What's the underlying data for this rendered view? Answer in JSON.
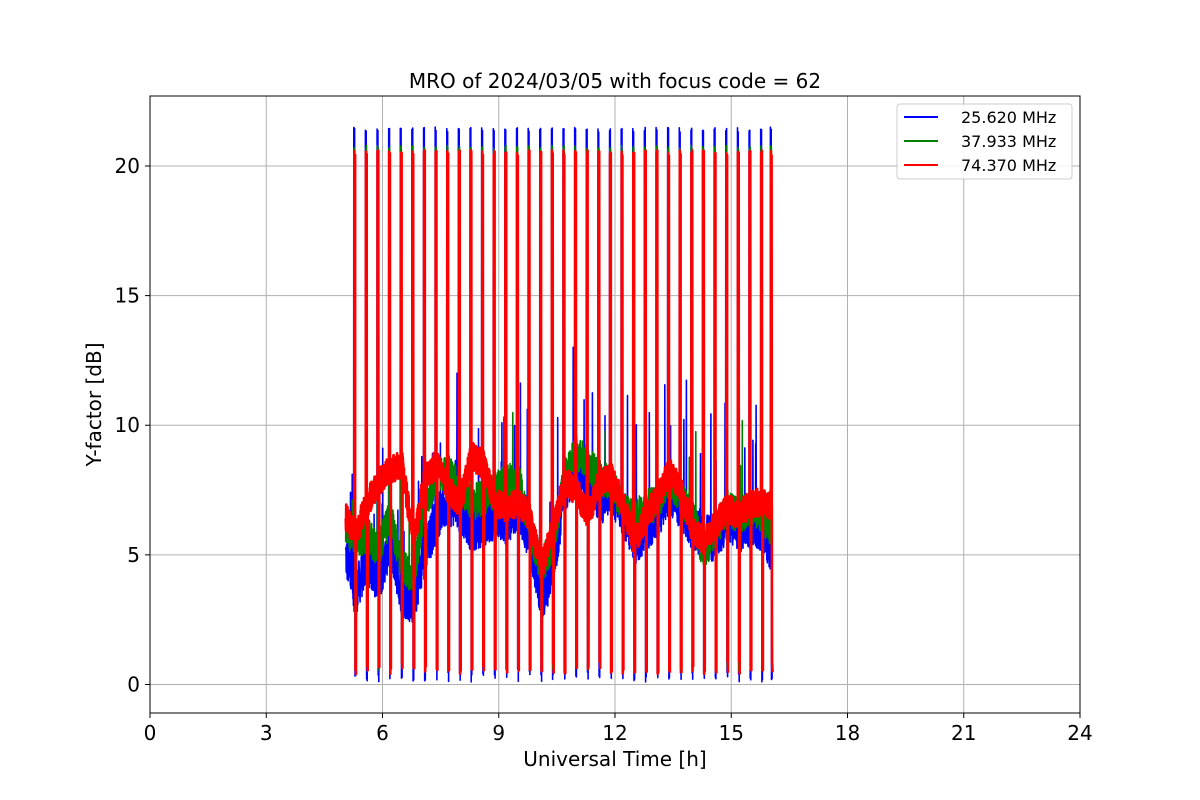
{
  "chart_data": {
    "type": "line",
    "title": "MRO of 2024/03/05 with focus code = 62",
    "xlabel": "Universal Time [h]",
    "ylabel": "Y-factor [dB]",
    "xlim": [
      0,
      24
    ],
    "ylim": [
      -1.1,
      22.7
    ],
    "xticks": [
      0,
      3,
      6,
      9,
      12,
      15,
      18,
      21,
      24
    ],
    "yticks": [
      0,
      5,
      10,
      15,
      20
    ],
    "grid": true,
    "legend_position": "top-right",
    "series": [
      {
        "name": "25.620 MHz",
        "color": "#0000ff",
        "spike_peak": 21.5,
        "spike_trough": 0.1,
        "baseline": {
          "x": [
            5.05,
            5.3,
            5.6,
            5.9,
            6.2,
            6.5,
            6.8,
            7.1,
            7.4,
            7.7,
            8.0,
            8.3,
            8.6,
            8.9,
            9.2,
            9.5,
            9.8,
            10.1,
            10.4,
            10.7,
            11.0,
            11.3,
            11.6,
            11.9,
            12.2,
            12.5,
            12.8,
            13.1,
            13.4,
            13.7,
            14.0,
            14.3,
            14.6,
            14.9,
            15.2,
            15.5,
            15.8,
            16.05
          ],
          "y": [
            5.0,
            3.5,
            4.8,
            4.0,
            5.5,
            3.5,
            3.2,
            5.0,
            6.5,
            7.0,
            6.8,
            6.0,
            6.2,
            6.5,
            6.3,
            6.8,
            5.5,
            3.2,
            4.5,
            7.5,
            8.5,
            8.0,
            7.0,
            7.5,
            6.5,
            5.5,
            6.0,
            6.5,
            7.5,
            6.8,
            6.0,
            5.8,
            5.5,
            6.5,
            6.0,
            6.2,
            6.0,
            5.2
          ]
        }
      },
      {
        "name": "37.933 MHz",
        "color": "#008000",
        "spike_peak": 20.8,
        "spike_trough": 0.5,
        "baseline": {
          "x": [
            5.05,
            5.3,
            5.6,
            5.9,
            6.2,
            6.5,
            6.8,
            7.1,
            7.4,
            7.7,
            8.0,
            8.3,
            8.6,
            8.9,
            9.2,
            9.5,
            9.8,
            10.1,
            10.4,
            10.7,
            11.0,
            11.3,
            11.6,
            11.9,
            12.2,
            12.5,
            12.8,
            13.1,
            13.4,
            13.7,
            14.0,
            14.3,
            14.6,
            14.9,
            15.2,
            15.5,
            15.8,
            16.05
          ],
          "y": [
            6.0,
            5.5,
            5.8,
            5.2,
            6.5,
            4.5,
            4.2,
            7.0,
            8.0,
            8.2,
            7.5,
            7.0,
            7.2,
            7.5,
            7.8,
            8.0,
            6.0,
            4.5,
            5.5,
            8.0,
            9.0,
            8.5,
            8.0,
            7.8,
            6.8,
            6.5,
            6.8,
            7.0,
            8.0,
            7.2,
            6.5,
            5.0,
            6.0,
            6.8,
            6.5,
            6.8,
            6.5,
            6.0
          ]
        }
      },
      {
        "name": "74.370 MHz",
        "color": "#ff0000",
        "spike_peak": 20.6,
        "spike_trough": 0.4,
        "baseline": {
          "x": [
            5.05,
            5.3,
            5.6,
            5.9,
            6.2,
            6.5,
            6.8,
            7.1,
            7.4,
            7.7,
            8.0,
            8.3,
            8.6,
            8.9,
            9.2,
            9.5,
            9.8,
            10.1,
            10.4,
            10.7,
            11.0,
            11.3,
            11.6,
            11.9,
            12.2,
            12.5,
            12.8,
            13.1,
            13.4,
            13.7,
            14.0,
            14.3,
            14.6,
            14.9,
            15.2,
            15.5,
            15.8,
            16.05
          ],
          "y": [
            6.5,
            5.8,
            7.0,
            7.8,
            8.3,
            8.5,
            5.5,
            8.0,
            8.5,
            7.5,
            7.0,
            8.8,
            8.5,
            7.0,
            6.8,
            7.0,
            6.5,
            4.5,
            6.0,
            7.8,
            7.5,
            6.5,
            7.8,
            8.0,
            7.0,
            5.5,
            6.5,
            7.2,
            8.2,
            7.5,
            6.0,
            5.5,
            6.2,
            6.8,
            6.5,
            7.0,
            7.0,
            6.9
          ]
        }
      }
    ],
    "spike_times": [
      5.25,
      5.55,
      5.85,
      6.15,
      6.45,
      6.75,
      7.05,
      7.35,
      7.65,
      7.95,
      8.25,
      8.55,
      8.85,
      9.15,
      9.45,
      9.75,
      10.05,
      10.35,
      10.65,
      10.95,
      11.25,
      11.55,
      11.85,
      12.15,
      12.45,
      12.75,
      13.05,
      13.35,
      13.65,
      13.95,
      14.25,
      14.55,
      14.85,
      15.15,
      15.45,
      15.75,
      16.0
    ]
  }
}
